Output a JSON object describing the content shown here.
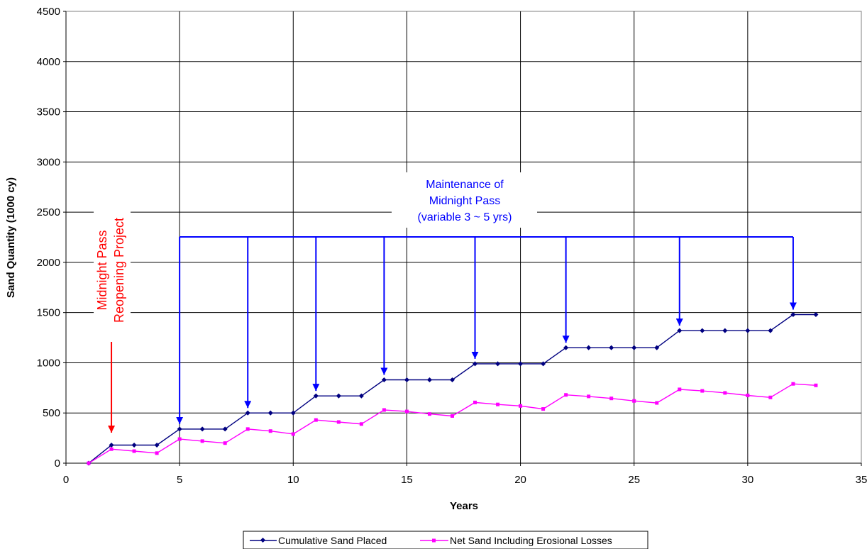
{
  "chart_data": {
    "type": "line",
    "xlabel": "Years",
    "ylabel": "Sand Quantity (1000 cy)",
    "xlim": [
      0,
      35
    ],
    "ylim": [
      0,
      4500
    ],
    "x_ticks": [
      0,
      5,
      10,
      15,
      20,
      25,
      30,
      35
    ],
    "y_ticks": [
      0,
      500,
      1000,
      1500,
      2000,
      2500,
      3000,
      3500,
      4000,
      4500
    ],
    "grid": "on",
    "legend_position": "bottom",
    "series": [
      {
        "name": "Cumulative Sand Placed",
        "color": "#000080",
        "marker": "diamond",
        "x": [
          1,
          2,
          3,
          4,
          5,
          6,
          7,
          8,
          9,
          10,
          11,
          12,
          13,
          14,
          15,
          16,
          17,
          18,
          19,
          20,
          21,
          22,
          23,
          24,
          25,
          26,
          27,
          28,
          29,
          30,
          31,
          32,
          33
        ],
        "values": [
          0,
          180,
          180,
          180,
          340,
          340,
          340,
          500,
          500,
          500,
          670,
          670,
          670,
          830,
          830,
          830,
          830,
          990,
          990,
          990,
          990,
          1150,
          1150,
          1150,
          1150,
          1150,
          1320,
          1320,
          1320,
          1320,
          1320,
          1480,
          1480
        ]
      },
      {
        "name": "Net Sand Including Erosional Losses",
        "color": "#ff00ff",
        "marker": "square",
        "x": [
          1,
          2,
          3,
          4,
          5,
          6,
          7,
          8,
          9,
          10,
          11,
          12,
          13,
          14,
          15,
          16,
          17,
          18,
          19,
          20,
          21,
          22,
          23,
          24,
          25,
          26,
          27,
          28,
          29,
          30,
          31,
          32,
          33
        ],
        "values": [
          0,
          140,
          120,
          100,
          240,
          220,
          200,
          340,
          320,
          290,
          430,
          410,
          390,
          530,
          515,
          490,
          470,
          605,
          585,
          570,
          540,
          680,
          665,
          645,
          620,
          600,
          735,
          720,
          700,
          675,
          655,
          790,
          775
        ]
      }
    ],
    "annotations": {
      "maintenance_lines": [
        "Maintenance of",
        "Midnight Pass",
        "(variable 3 ~ 5 yrs)"
      ],
      "maintenance_years": [
        5,
        8,
        11,
        14,
        18,
        22,
        27,
        32
      ],
      "reopening_lines": [
        "Midnight Pass",
        "Reopening Project"
      ],
      "reopening_year": 2
    },
    "colors": {
      "maintenance": "#0000ff",
      "reopening": "#ff0000"
    }
  }
}
